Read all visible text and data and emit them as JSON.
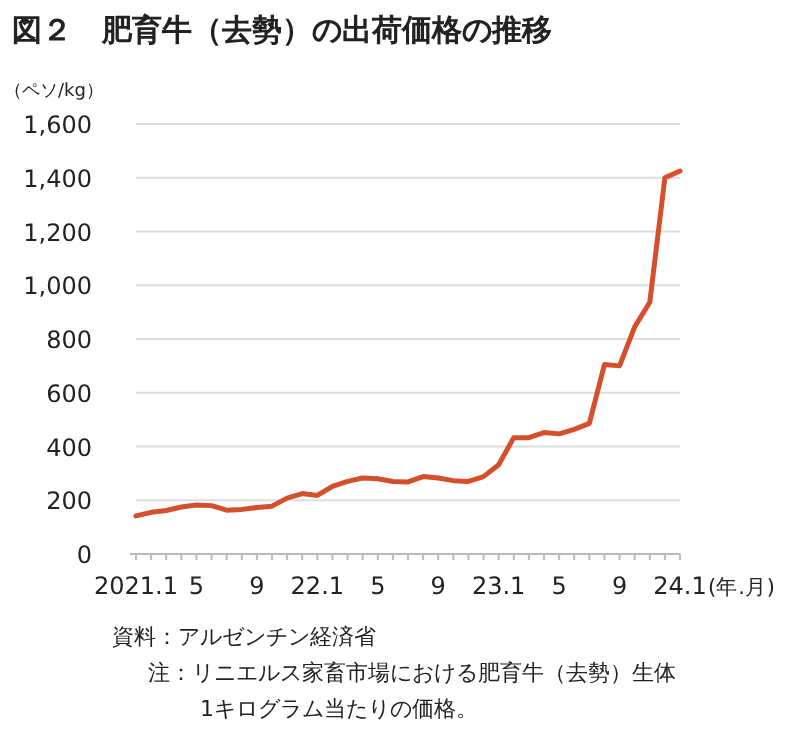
{
  "chart_data": {
    "type": "line",
    "title": "図２　肥育牛（去勢）の出荷価格の推移",
    "ylabel": "（ペソ/kg）",
    "xlabel": "(年.月)",
    "categories": [
      "2021.1",
      null,
      null,
      null,
      "5",
      null,
      null,
      null,
      "9",
      null,
      null,
      null,
      "22.1",
      null,
      null,
      null,
      "5",
      null,
      null,
      null,
      "9",
      null,
      null,
      null,
      "23.1",
      null,
      null,
      null,
      "5",
      null,
      null,
      null,
      "9",
      null,
      null,
      null,
      "24.1"
    ],
    "series": [
      {
        "color": "#d4502d",
        "values": [
          142,
          155,
          162,
          175,
          182,
          180,
          163,
          166,
          173,
          178,
          208,
          225,
          218,
          252,
          270,
          283,
          280,
          270,
          268,
          288,
          283,
          273,
          270,
          288,
          332,
          433,
          433,
          452,
          447,
          464,
          486,
          705,
          700,
          845,
          937,
          1400,
          1425
        ]
      }
    ],
    "ylim": [
      0,
      1600
    ],
    "yticks": [
      0,
      {
        "value": 200,
        "label": "200"
      },
      {
        "value": 400,
        "label": "400"
      },
      {
        "value": 600,
        "label": "600"
      },
      {
        "value": 800,
        "label": "800"
      },
      {
        "value": 1000,
        "label": "1,000"
      },
      {
        "value": 1200,
        "label": "1,200"
      },
      {
        "value": 1400,
        "label": "1,400"
      },
      {
        "value": 1600,
        "label": "1,600"
      }
    ],
    "grid": "y",
    "annotations": [
      "資料：アルゼンチン経済省",
      "注：リニエルス家畜市場における肥育牛（去勢）生体",
      "1キログラム当たりの価格。"
    ]
  }
}
